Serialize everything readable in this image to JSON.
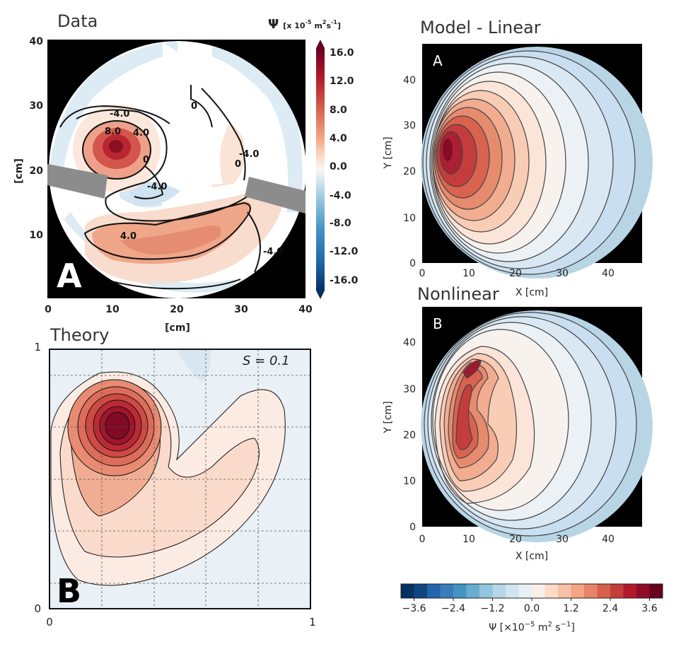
{
  "chart_data": [
    {
      "panel": "data",
      "type": "heatmap",
      "title": "Data",
      "panel_letter": "A",
      "xlabel": "[cm]",
      "ylabel": "[cm]",
      "xlim": [
        0,
        40
      ],
      "ylim": [
        0,
        40
      ],
      "xticks": [
        "0",
        "10",
        "20",
        "30",
        "40"
      ],
      "yticks": [
        "10",
        "20",
        "30",
        "40"
      ],
      "colorbar": {
        "label_prefix": "Ψ",
        "label_units": "[x 10",
        "label_exp": "-5",
        "label_units2": "m",
        "label_exp2": "2",
        "label_units3": "s",
        "label_exp3": "-1",
        "label_close": "]",
        "ticks": [
          "16.0",
          "12.0",
          "8.0",
          "4.0",
          "0.0",
          "-4.0",
          "-8.0",
          "-12.0",
          "-16.0"
        ]
      },
      "contour_labels": [
        "-4.0",
        "8.0",
        "4.0",
        "0",
        "0",
        "-4.0",
        "-4.0",
        "0",
        "4.0",
        "-4.0"
      ]
    },
    {
      "panel": "theory",
      "type": "heatmap",
      "title": "Theory",
      "panel_letter": "B",
      "annotation": "S = 0.1",
      "xlim": [
        0,
        1
      ],
      "ylim": [
        0,
        1
      ],
      "xticks": [
        "0",
        "1"
      ],
      "yticks": [
        "0",
        "1"
      ]
    },
    {
      "panel": "model-linear",
      "type": "heatmap",
      "title": "Model - Linear",
      "panel_letter": "A",
      "xlabel": "X [cm]",
      "ylabel": "Y [cm]",
      "xticks": [
        "0",
        "10",
        "20",
        "30",
        "40"
      ],
      "yticks": [
        "0",
        "10",
        "20",
        "30",
        "40"
      ]
    },
    {
      "panel": "model-nonlinear",
      "type": "heatmap",
      "title": "Nonlinear",
      "panel_letter": "B",
      "xlabel": "X [cm]",
      "ylabel": "Y [cm]",
      "xticks": [
        "0",
        "10",
        "20",
        "30",
        "40"
      ],
      "yticks": [
        "0",
        "10",
        "20",
        "30",
        "40"
      ]
    },
    {
      "panel": "model-colorbar",
      "type": "colorbar",
      "ticks": [
        "−3.6",
        "−2.4",
        "−1.2",
        "0.0",
        "1.2",
        "2.4",
        "3.6"
      ],
      "label": "Ψ [×10",
      "label_exp": "−5",
      "label_mid": " m",
      "label_exp2": "2",
      "label_end": " s",
      "label_exp3": "−1",
      "label_close": "]"
    }
  ],
  "colors": {
    "red_dark": "#67001f",
    "red": "#b2182b",
    "red_mid": "#d6604d",
    "red_light": "#f4a582",
    "pink_pale": "#fddbc7",
    "white": "#f7f7f7",
    "blue_pale": "#d1e5f0",
    "blue_light": "#92c5de",
    "blue_mid": "#4393c3",
    "blue": "#2166ac",
    "blue_dark": "#053061"
  }
}
